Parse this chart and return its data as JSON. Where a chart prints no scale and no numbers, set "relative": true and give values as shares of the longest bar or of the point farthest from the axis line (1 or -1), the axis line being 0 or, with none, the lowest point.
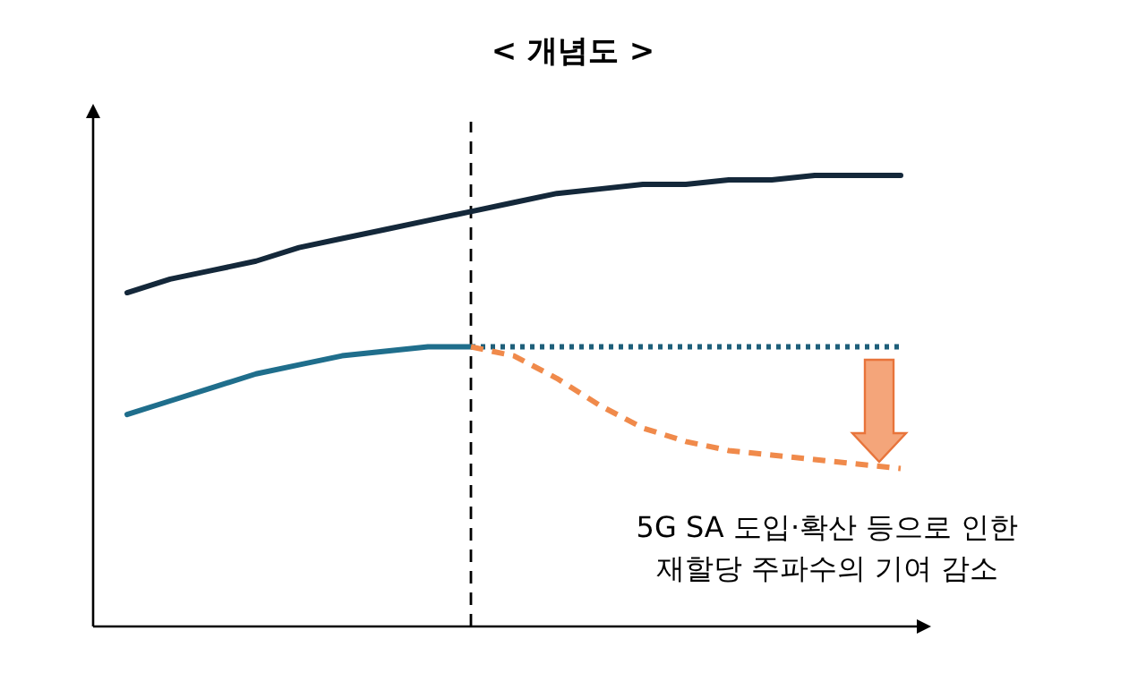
{
  "chart_data": {
    "type": "line",
    "title": "< 개념도 >",
    "relative": true,
    "categories": [
      null,
      null,
      null,
      null,
      null,
      null,
      null,
      null,
      null,
      null,
      null,
      null,
      null,
      null,
      null,
      null,
      null,
      null,
      null
    ],
    "series": [
      {
        "color": "#14283a",
        "line_style": "solid",
        "values": [
          0.74,
          0.77,
          0.79,
          0.81,
          0.84,
          0.86,
          0.88,
          0.9,
          0.92,
          0.94,
          0.96,
          0.97,
          0.98,
          0.98,
          0.99,
          0.99,
          1,
          1,
          1
        ]
      },
      {
        "color": "#1f6e8c",
        "line_style": "solid",
        "values": [
          0.47,
          0.5,
          0.53,
          0.56,
          0.58,
          0.6,
          0.61,
          0.62,
          0.62,
          null,
          null,
          null,
          null,
          null,
          null,
          null,
          null,
          null,
          null
        ]
      },
      {
        "color": "#1e5f7a",
        "line_style": "dotted",
        "values": [
          null,
          null,
          null,
          null,
          null,
          null,
          null,
          null,
          0.62,
          0.62,
          0.62,
          0.62,
          0.62,
          0.62,
          0.62,
          0.62,
          0.62,
          0.62,
          0.62
        ]
      },
      {
        "color": "#f08a4b",
        "line_style": "dashed",
        "values": [
          null,
          null,
          null,
          null,
          null,
          null,
          null,
          null,
          0.62,
          0.6,
          0.55,
          0.49,
          0.44,
          0.41,
          0.39,
          0.38,
          0.37,
          0.36,
          0.35
        ]
      }
    ],
    "annotations": [
      "5G SA 도입·확산 등으로 인한\n재할당 주파수의 기여 감소"
    ]
  }
}
